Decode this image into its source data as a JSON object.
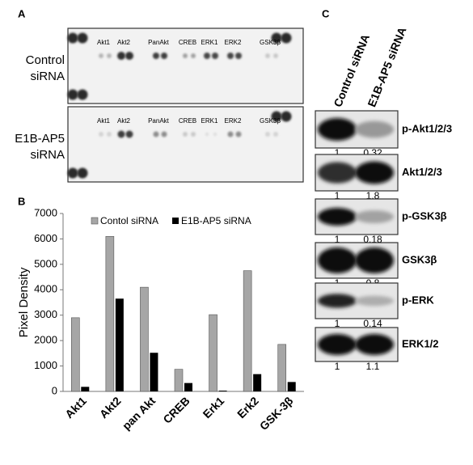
{
  "panel_labels": [
    "A",
    "B",
    "C"
  ],
  "panel_a": {
    "membranes": [
      {
        "label_lines": [
          "Control",
          "siRNA"
        ],
        "spots": [
          "Akt1",
          "Akt2",
          "PanAkt",
          "CREB",
          "ERK1",
          "ERK2",
          "GSK3β"
        ]
      },
      {
        "label_lines": [
          "E1B-AP5",
          "siRNA"
        ],
        "spots": [
          "Akt1",
          "Akt2",
          "PanAkt",
          "CREB",
          "ERK1",
          "ERK2",
          "GSK3β"
        ]
      }
    ]
  },
  "chart_data": {
    "type": "bar",
    "ylabel": "Pixel Density",
    "categories": [
      "Akt1",
      "Akt2",
      "pan Akt",
      "CREB",
      "Erk1",
      "Erk2",
      "GSK-3β"
    ],
    "series": [
      {
        "name": "Contol siRNA",
        "color": "#a6a6a6",
        "values": [
          2900,
          6100,
          4100,
          870,
          3020,
          4750,
          1850
        ]
      },
      {
        "name": "E1B-AP5 siRNA",
        "color": "#000000",
        "values": [
          180,
          3650,
          1520,
          330,
          30,
          680,
          370
        ]
      }
    ],
    "ylim": [
      0,
      7000
    ],
    "yticks": [
      0,
      1000,
      2000,
      3000,
      4000,
      5000,
      6000,
      7000
    ],
    "grid": false
  },
  "panel_c": {
    "columns": [
      "Control siRNA",
      "E1B-AP5 siRNA"
    ],
    "blots": [
      {
        "label": "p-Akt1/2/3",
        "ratios": [
          1,
          0.32
        ]
      },
      {
        "label": "Akt1/2/3",
        "ratios": [
          1,
          1.8
        ]
      },
      {
        "label": "p-GSK3β",
        "ratios": [
          1,
          0.18
        ]
      },
      {
        "label": "GSK3β",
        "ratios": [
          1,
          0.8
        ]
      },
      {
        "label": "p-ERK",
        "ratios": [
          1,
          0.14
        ]
      },
      {
        "label": "ERK1/2",
        "ratios": [
          1,
          1.1
        ]
      }
    ]
  }
}
